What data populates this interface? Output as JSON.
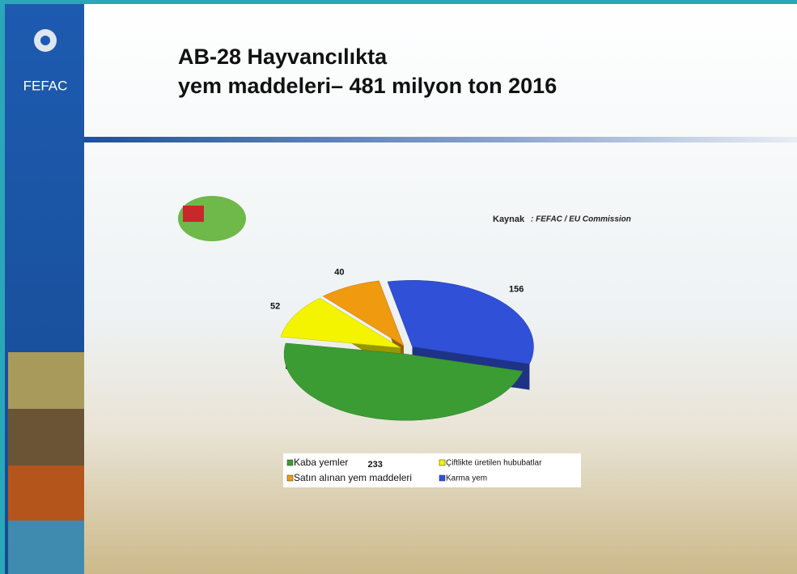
{
  "logo": "FEFAC",
  "chart_data": {
    "type": "pie",
    "title": [
      "AB-28 Hayvancılıkta",
      "yem maddeleri– 481 milyon ton 2016"
    ],
    "source_label": "Kaynak",
    "source": ": FEFAC / EU Commission",
    "categories": [
      "Kaba yemler",
      "Çiftlikte üretilen hububatlar",
      "Satın alınan yem maddeleri",
      "Karma yem"
    ],
    "values": [
      233,
      52,
      40,
      156
    ],
    "colors": [
      "#3c9c34",
      "#f4f400",
      "#f09a10",
      "#3050d8"
    ],
    "legend": "bottom"
  }
}
